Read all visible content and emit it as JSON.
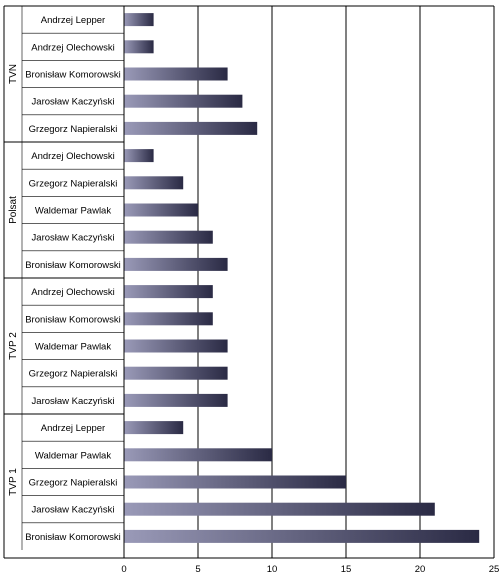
{
  "chart_data": {
    "type": "bar",
    "orientation": "horizontal",
    "xlim": [
      0,
      25
    ],
    "x_ticks": [
      "0",
      "5",
      "10",
      "15",
      "20",
      "25"
    ],
    "grid": "vertical",
    "groups": [
      {
        "name": "TVN",
        "items": [
          {
            "label": "Andrzej Lepper",
            "value": 2
          },
          {
            "label": "Andrzej Olechowski",
            "value": 2
          },
          {
            "label": "Bronisław Komorowski",
            "value": 7
          },
          {
            "label": "Jarosław Kaczyński",
            "value": 8
          },
          {
            "label": "Grzegorz Napieralski",
            "value": 9
          }
        ]
      },
      {
        "name": "Polsat",
        "items": [
          {
            "label": "Andrzej Olechowski",
            "value": 2
          },
          {
            "label": "Grzegorz Napieralski",
            "value": 4
          },
          {
            "label": "Waldemar Pawlak",
            "value": 5
          },
          {
            "label": "Jarosław Kaczyński",
            "value": 6
          },
          {
            "label": "Bronisław Komorowski",
            "value": 7
          }
        ]
      },
      {
        "name": "TVP 2",
        "items": [
          {
            "label": "Andrzej Olechowski",
            "value": 6
          },
          {
            "label": "Bronisław Komorowski",
            "value": 6
          },
          {
            "label": "Waldemar Pawlak",
            "value": 7
          },
          {
            "label": "Grzegorz Napieralski",
            "value": 7
          },
          {
            "label": "Jarosław Kaczyński",
            "value": 7
          }
        ]
      },
      {
        "name": "TVP 1",
        "items": [
          {
            "label": "Andrzej Lepper",
            "value": 4
          },
          {
            "label": "Waldemar Pawlak",
            "value": 10
          },
          {
            "label": "Grzegorz Napieralski",
            "value": 15
          },
          {
            "label": "Jarosław Kaczyński",
            "value": 21
          },
          {
            "label": "Bronisław Komorowski",
            "value": 24
          }
        ]
      }
    ],
    "colors": {
      "bar_light": "#9a9ab8",
      "bar_dark": "#2a2a44",
      "grid": "#000000"
    }
  }
}
